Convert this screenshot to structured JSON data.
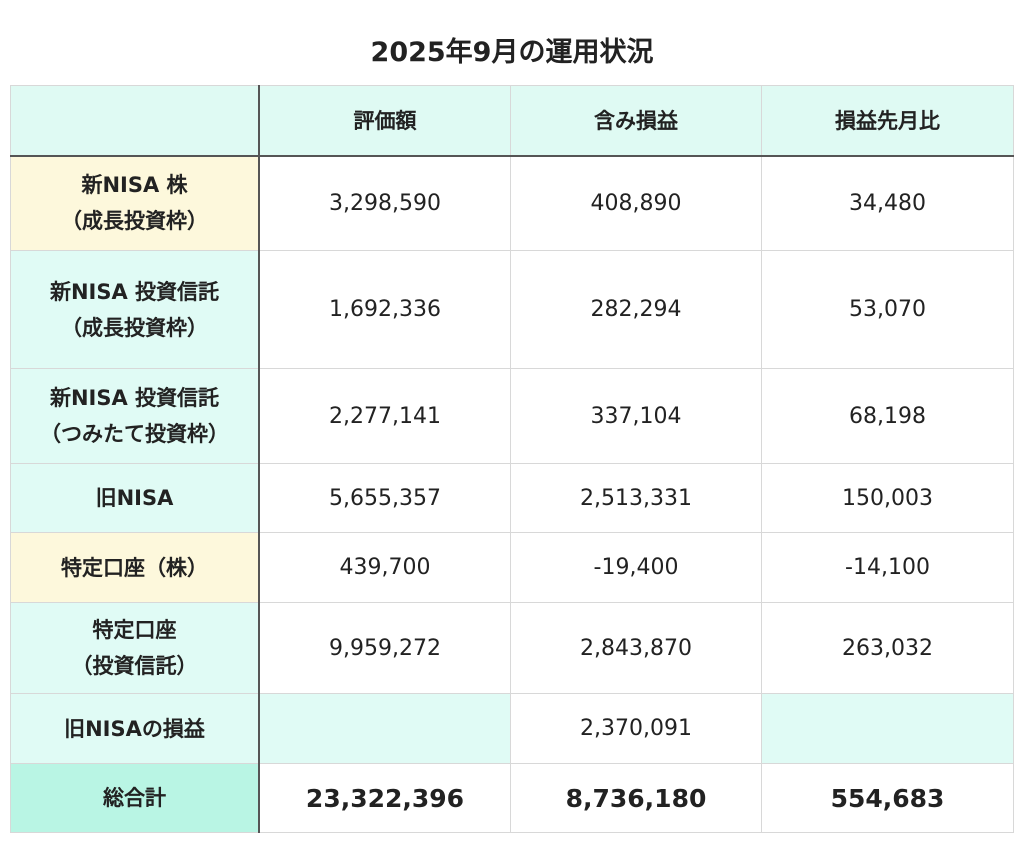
{
  "title": "2025年9月の運用状況",
  "table": {
    "header": [
      "評価額",
      "含み損益",
      "損益先月比"
    ],
    "rows": [
      {
        "label": [
          "新NISA 株",
          "（成長投資枠）"
        ],
        "kind": "stock",
        "cells": [
          "3,298,590",
          "408,890",
          "34,480"
        ]
      },
      {
        "label": [
          "新NISA 投資信託",
          "（成長投資枠）"
        ],
        "kind": "fund",
        "cells": [
          "1,692,336",
          "282,294",
          "53,070"
        ]
      },
      {
        "label": [
          "新NISA 投資信託",
          "（つみたて投資枠）"
        ],
        "kind": "fund",
        "cells": [
          "2,277,141",
          "337,104",
          "68,198"
        ]
      },
      {
        "label": [
          "旧NISA"
        ],
        "kind": "fund",
        "cells": [
          "5,655,357",
          "2,513,331",
          "150,003"
        ]
      },
      {
        "label": [
          "特定口座（株）"
        ],
        "kind": "stock",
        "cells": [
          "439,700",
          "-19,400",
          "-14,100"
        ]
      },
      {
        "label": [
          "特定口座",
          "（投資信託）"
        ],
        "kind": "fund",
        "cells": [
          "9,959,272",
          "2,843,870",
          "263,032"
        ]
      },
      {
        "label": [
          "旧NISAの損益"
        ],
        "kind": "fund",
        "cells": [
          null,
          "2,370,091",
          null
        ]
      },
      {
        "label": [
          "総合計"
        ],
        "kind": "total",
        "cells": [
          "23,322,396",
          "8,736,180",
          "554,683"
        ]
      }
    ]
  }
}
